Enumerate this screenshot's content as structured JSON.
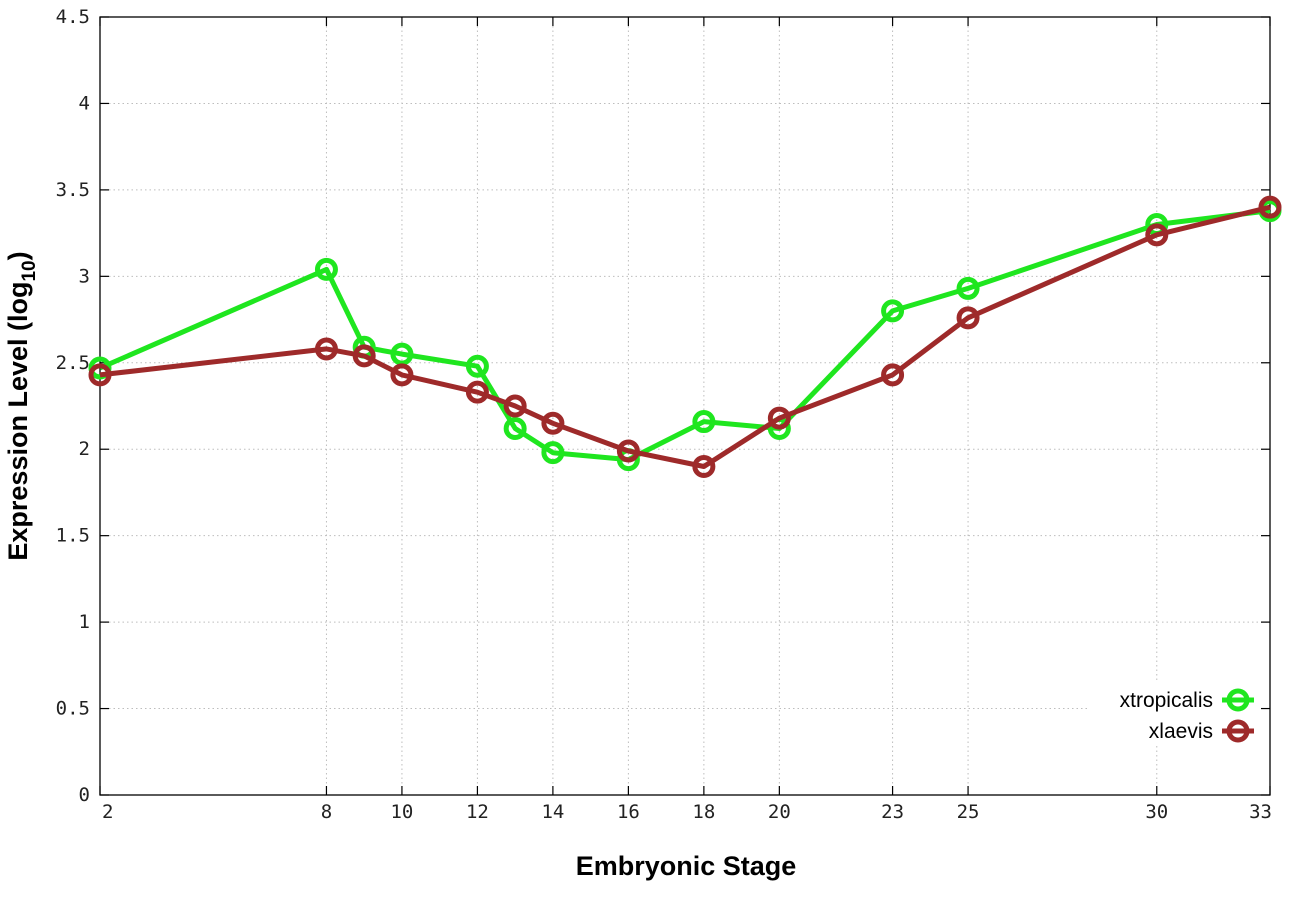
{
  "chart_data": {
    "type": "line",
    "xlabel": "Embryonic Stage",
    "ylabel_main": "Expression Level (log",
    "ylabel_sub": "10",
    "ylabel_close": ")",
    "x_ticks": [
      2,
      8,
      10,
      12,
      14,
      16,
      18,
      20,
      23,
      25,
      30,
      33
    ],
    "y_ticks": [
      "0",
      "0.5",
      "1",
      "1.5",
      "2",
      "2.5",
      "3",
      "3.5",
      "4",
      "4.5"
    ],
    "xlim": [
      2,
      33
    ],
    "ylim": [
      0,
      4.5
    ],
    "grid": true,
    "legend_position": "bottom-right",
    "series": [
      {
        "name": "xtropicalis",
        "color": "#1fe61f",
        "x": [
          2,
          8,
          9,
          10,
          12,
          13,
          14,
          16,
          18,
          20,
          23,
          25,
          30,
          33
        ],
        "y": [
          2.47,
          3.04,
          2.59,
          2.55,
          2.48,
          2.12,
          1.98,
          1.94,
          2.16,
          2.12,
          2.8,
          2.93,
          3.3,
          3.38
        ]
      },
      {
        "name": "xlaevis",
        "color": "#9e2a2a",
        "x": [
          2,
          8,
          9,
          10,
          12,
          13,
          14,
          16,
          18,
          20,
          23,
          25,
          30,
          33
        ],
        "y": [
          2.43,
          2.58,
          2.54,
          2.43,
          2.33,
          2.25,
          2.15,
          1.99,
          1.9,
          2.18,
          2.43,
          2.76,
          3.24,
          3.4
        ]
      }
    ]
  }
}
